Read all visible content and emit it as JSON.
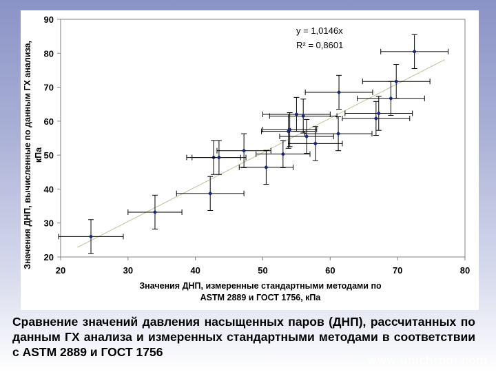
{
  "caption": "Сравнение значений давления насыщенных паров (ДНП), рассчитанных по данным ГХ анализа и измеренных стандартными методами в соответствии с ASTM 2889 и ГОСТ 1756",
  "site": "www.unichrom.com",
  "chart_data": {
    "type": "scatter",
    "title": "",
    "xlabel": "Значения ДНП, измеренные стандартными методами по ASTM 2889 и ГОСТ 1756, кПа",
    "xlabel_lines": [
      "Значения ДНП, измеренные стандартными методами по",
      "ASTM 2889 и ГОСТ 1756, кПа"
    ],
    "ylabel": "Значения ДНП, вычисленные по данным ГХ анализа, кПа",
    "ylabel_lines": [
      "Значения ДНП, вычисленные по данным ГХ анализа,",
      "кПа"
    ],
    "xlim": [
      20,
      80
    ],
    "ylim": [
      20,
      90
    ],
    "xticks": [
      20,
      30,
      40,
      50,
      60,
      70,
      80
    ],
    "yticks": [
      20,
      30,
      40,
      50,
      60,
      70,
      80,
      90
    ],
    "grid": false,
    "colors": {
      "points": "#1a2470",
      "errorbars": "#000000",
      "trendline": "#c8c8a8",
      "plot_border": "#808080"
    },
    "trendline": {
      "equation": "y = 1,0146x",
      "r2_label": "R² = 0,8601",
      "slope": 1.0146,
      "x_range": [
        22.5,
        77
      ]
    },
    "points": [
      {
        "x": 24.5,
        "y": 26.0,
        "xerr": 4.8,
        "yerr": 5.0
      },
      {
        "x": 34.0,
        "y": 33.2,
        "xerr": 4.0,
        "yerr": 5.0
      },
      {
        "x": 42.2,
        "y": 38.7,
        "xerr": 5.0,
        "yerr": 5.0
      },
      {
        "x": 42.7,
        "y": 49.3,
        "xerr": 4.0,
        "yerr": 5.0
      },
      {
        "x": 43.5,
        "y": 49.3,
        "xerr": 4.0,
        "yerr": 5.0
      },
      {
        "x": 47.2,
        "y": 51.3,
        "xerr": 4.0,
        "yerr": 5.0
      },
      {
        "x": 50.5,
        "y": 46.4,
        "xerr": 4.0,
        "yerr": 5.0
      },
      {
        "x": 53.0,
        "y": 50.3,
        "xerr": 4.0,
        "yerr": 4.0
      },
      {
        "x": 53.8,
        "y": 57.0,
        "xerr": 4.0,
        "yerr": 5.0
      },
      {
        "x": 54.0,
        "y": 57.5,
        "xerr": 4.0,
        "yerr": 5.0
      },
      {
        "x": 55.0,
        "y": 62.0,
        "xerr": 5.0,
        "yerr": 5.0
      },
      {
        "x": 56.0,
        "y": 61.5,
        "xerr": 5.0,
        "yerr": 5.0
      },
      {
        "x": 56.5,
        "y": 55.5,
        "xerr": 4.0,
        "yerr": 5.0
      },
      {
        "x": 57.8,
        "y": 53.4,
        "xerr": 4.0,
        "yerr": 5.0
      },
      {
        "x": 61.2,
        "y": 56.3,
        "xerr": 5.0,
        "yerr": 5.0
      },
      {
        "x": 61.3,
        "y": 68.5,
        "xerr": 5.0,
        "yerr": 5.0
      },
      {
        "x": 66.8,
        "y": 60.8,
        "xerr": 5.0,
        "yerr": 5.0
      },
      {
        "x": 67.2,
        "y": 62.3,
        "xerr": 5.0,
        "yerr": 5.0
      },
      {
        "x": 69.0,
        "y": 66.7,
        "xerr": 5.0,
        "yerr": 5.0
      },
      {
        "x": 69.8,
        "y": 71.7,
        "xerr": 5.0,
        "yerr": 5.0
      },
      {
        "x": 72.5,
        "y": 80.5,
        "xerr": 5.0,
        "yerr": 5.0
      }
    ]
  }
}
